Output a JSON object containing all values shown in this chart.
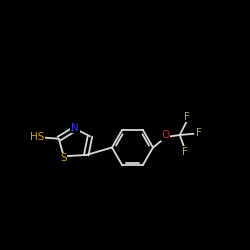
{
  "bg_color": "#000000",
  "bond_color": "#d8d8d8",
  "bond_width": 1.3,
  "atom_N_color": "#3333ee",
  "atom_S_thiol_color": "#ccaa00",
  "atom_S_ring_color": "#ccaa00",
  "atom_O_color": "#cc2222",
  "atom_F_color": "#88bb44",
  "font_size": 7.5,
  "figsize": [
    2.5,
    2.5
  ],
  "dpi": 100,
  "xlim": [
    0,
    10
  ],
  "ylim": [
    0,
    10
  ]
}
